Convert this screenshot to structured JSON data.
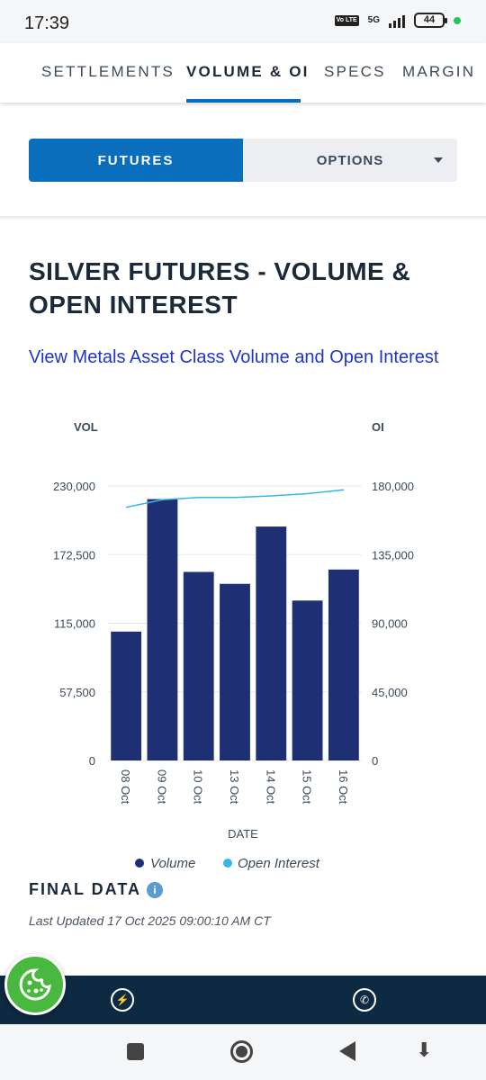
{
  "status_bar": {
    "time": "17:39",
    "volte": "Vo LTE",
    "network": "5G",
    "battery": "44"
  },
  "tabs": [
    {
      "label": "SETTLEMENTS"
    },
    {
      "label": "VOLUME & OI"
    },
    {
      "label": "SPECS"
    },
    {
      "label": "MARGIN"
    }
  ],
  "toggle": {
    "futures": "FUTURES",
    "options": "OPTIONS"
  },
  "section": {
    "title": "SILVER FUTURES - VOLUME & OPEN INTEREST",
    "link": "View Metals Asset Class Volume and Open Interest"
  },
  "chart_data": {
    "type": "bar",
    "categories": [
      "08 Oct",
      "09 Oct",
      "10 Oct",
      "13 Oct",
      "14 Oct",
      "15 Oct",
      "16 Oct"
    ],
    "series": [
      {
        "name": "Volume",
        "type": "bar",
        "axis": "left",
        "values": [
          108000,
          219000,
          158000,
          148000,
          196000,
          134000,
          160000
        ],
        "color": "#1f2f73"
      },
      {
        "name": "Open Interest",
        "type": "line",
        "axis": "right",
        "values": [
          166000,
          171000,
          172500,
          172500,
          173500,
          175000,
          177500
        ],
        "color": "#38b6e8"
      }
    ],
    "left_axis": {
      "label": "VOL",
      "ticks": [
        "0",
        "57,500",
        "115,000",
        "172,500",
        "230,000"
      ],
      "ylim": [
        0,
        230000
      ]
    },
    "right_axis": {
      "label": "OI",
      "ticks": [
        "0",
        "45,000",
        "90,000",
        "135,000",
        "180,000"
      ],
      "ylim": [
        0,
        180000
      ]
    },
    "xlabel": "DATE",
    "legend": [
      "Volume",
      "Open Interest"
    ],
    "legend_position": "bottom"
  },
  "final": {
    "label": "FINAL DATA",
    "info": "i",
    "last_updated": "Last Updated 17 Oct 2025 09:00:10 AM CT"
  },
  "bottom_bar": {
    "messenger": "messenger-icon",
    "whatsapp": "whatsapp-icon"
  },
  "colors": {
    "accent": "#0a6ebd",
    "bar": "#1f2f73",
    "line": "#38b6e8",
    "link": "#1f35c6",
    "dark_bar": "#0d2a42"
  }
}
